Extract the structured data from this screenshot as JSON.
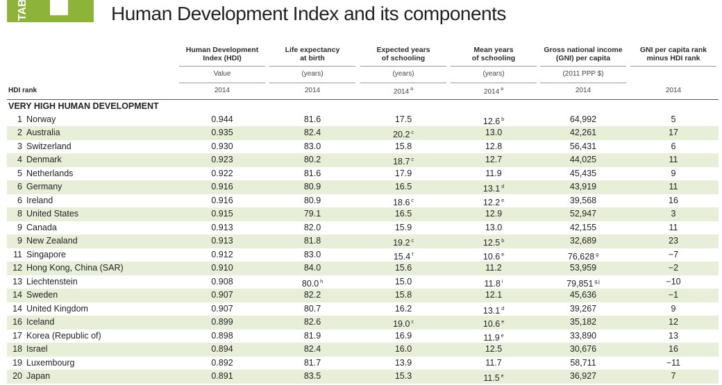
{
  "tab": {
    "label": "TAB"
  },
  "title": "Human Development Index and its components",
  "header": {
    "rank_label": "HDI rank",
    "columns": [
      {
        "title": "Human Development\nIndex (HDI)",
        "unit": "Value",
        "year": "2014"
      },
      {
        "title": "Life expectancy\nat birth",
        "unit": "(years)",
        "year": "2014"
      },
      {
        "title": "Expected years\nof schooling",
        "unit": "(years)",
        "year": {
          "v": "2014",
          "n": "a"
        }
      },
      {
        "title": "Mean years\nof schooling",
        "unit": "(years)",
        "year": {
          "v": "2014",
          "n": "a"
        }
      },
      {
        "title": "Gross national income\n(GNI) per capita",
        "unit": "(2011 PPP $)",
        "year": "2014"
      },
      {
        "title": "GNI per capita rank\nminus HDI rank",
        "year": "2014"
      }
    ]
  },
  "section": "VERY HIGH HUMAN DEVELOPMENT",
  "rows": [
    [
      "1",
      "Norway",
      "0.944",
      "81.6",
      "17.5",
      {
        "v": "12.6",
        "n": "b"
      },
      "64,992",
      "5"
    ],
    [
      "2",
      "Australia",
      "0.935",
      "82.4",
      {
        "v": "20.2",
        "n": "c"
      },
      "13.0",
      "42,261",
      "17"
    ],
    [
      "3",
      "Switzerland",
      "0.930",
      "83.0",
      "15.8",
      "12.8",
      "56,431",
      "6"
    ],
    [
      "4",
      "Denmark",
      "0.923",
      "80.2",
      {
        "v": "18.7",
        "n": "c"
      },
      "12.7",
      "44,025",
      "11"
    ],
    [
      "5",
      "Netherlands",
      "0.922",
      "81.6",
      "17.9",
      "11.9",
      "45,435",
      "9"
    ],
    [
      "6",
      "Germany",
      "0.916",
      "80.9",
      "16.5",
      {
        "v": "13.1",
        "n": "d"
      },
      "43,919",
      "11"
    ],
    [
      "6",
      "Ireland",
      "0.916",
      "80.9",
      {
        "v": "18.6",
        "n": "c"
      },
      {
        "v": "12.2",
        "n": "e"
      },
      "39,568",
      "16"
    ],
    [
      "8",
      "United States",
      "0.915",
      "79.1",
      "16.5",
      "12.9",
      "52,947",
      "3"
    ],
    [
      "9",
      "Canada",
      "0.913",
      "82.0",
      "15.9",
      "13.0",
      "42,155",
      "11"
    ],
    [
      "9",
      "New Zealand",
      "0.913",
      "81.8",
      {
        "v": "19.2",
        "n": "c"
      },
      {
        "v": "12.5",
        "n": "b"
      },
      "32,689",
      "23"
    ],
    [
      "11",
      "Singapore",
      "0.912",
      "83.0",
      {
        "v": "15.4",
        "n": "f"
      },
      {
        "v": "10.6",
        "n": "e"
      },
      {
        "v": "76,628",
        "n": "g"
      },
      "−7"
    ],
    [
      "12",
      "Hong Kong, China (SAR)",
      "0.910",
      "84.0",
      "15.6",
      "11.2",
      "53,959",
      "−2"
    ],
    [
      "13",
      "Liechtenstein",
      "0.908",
      {
        "v": "80.0",
        "n": "h"
      },
      "15.0",
      {
        "v": "11.8",
        "n": "i"
      },
      {
        "v": "79,851",
        "n": "g,j"
      },
      "−10"
    ],
    [
      "14",
      "Sweden",
      "0.907",
      "82.2",
      "15.8",
      "12.1",
      "45,636",
      "−1"
    ],
    [
      "14",
      "United Kingdom",
      "0.907",
      "80.7",
      "16.2",
      {
        "v": "13.1",
        "n": "d"
      },
      "39,267",
      "9"
    ],
    [
      "16",
      "Iceland",
      "0.899",
      "82.6",
      {
        "v": "19.0",
        "n": "c"
      },
      {
        "v": "10.6",
        "n": "e"
      },
      "35,182",
      "12"
    ],
    [
      "17",
      "Korea (Republic of)",
      "0.898",
      "81.9",
      "16.9",
      {
        "v": "11.9",
        "n": "e"
      },
      "33,890",
      "13"
    ],
    [
      "18",
      "Israel",
      "0.894",
      "82.4",
      "16.0",
      "12.5",
      "30,676",
      "16"
    ],
    [
      "19",
      "Luxembourg",
      "0.892",
      "81.7",
      "13.9",
      "11.7",
      "58,711",
      "−11"
    ],
    [
      "20",
      "Japan",
      "0.891",
      "83.5",
      "15.3",
      {
        "v": "11.5",
        "n": "e"
      },
      "36,927",
      "7"
    ]
  ]
}
